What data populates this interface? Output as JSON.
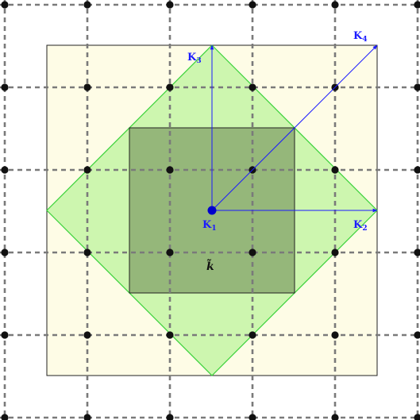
{
  "labels": {
    "k1": {
      "main": "K",
      "sub": "1"
    },
    "k2": {
      "main": "K",
      "sub": "2"
    },
    "k3": {
      "main": "K",
      "sub": "3"
    },
    "k4": {
      "main": "K",
      "sub": "4"
    },
    "k_tilde": "k̃"
  },
  "colors": {
    "grid_line": "#7a7a7a",
    "lattice_point": "#111111",
    "outer_square_fill": "#fefce6",
    "outer_square_stroke": "#222222",
    "diamond_fill": "#c8f5a8",
    "diamond_stroke": "#39d239",
    "inner_square_fill": "#8fa877",
    "inner_square_stroke": "#222222",
    "vector": "#1a1aff",
    "origin": "#0000cc"
  }
}
